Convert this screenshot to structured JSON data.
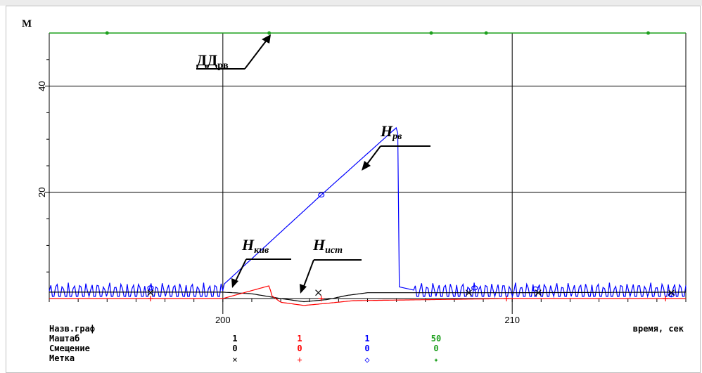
{
  "chart_data": {
    "type": "line",
    "y_axis_label": "M",
    "y_ticks": [
      20,
      40
    ],
    "x_ticks": [
      200,
      210
    ],
    "x_tick_labels": [
      "200",
      "210"
    ],
    "y_tick_labels": [
      "20",
      "40"
    ],
    "xlim": [
      194,
      216
    ],
    "ylim": [
      0,
      50
    ],
    "grid": true,
    "annotations": {
      "dd_rv": "ДД",
      "dd_rv_sub": "рв",
      "h_rv": "H",
      "h_rv_sub": "рв",
      "h_kiv": "H",
      "h_kiv_sub": "кив",
      "h_ist": "H",
      "h_ist_sub": "ист"
    },
    "series": [
      {
        "color": "#1ea01e",
        "x": [
          194,
          198,
          204,
          209,
          211,
          216
        ],
        "y": [
          50,
          50,
          50,
          50,
          50,
          50
        ]
      },
      {
        "color": "#0000ff",
        "x": [
          200,
          203.4,
          206.0,
          206.05,
          206.1,
          206.6,
          210,
          216
        ],
        "y": [
          2.5,
          19.5,
          32.2,
          31.0,
          2.2,
          1.6,
          1.6,
          1.6
        ]
      },
      {
        "color": "#000000",
        "x": [
          194,
          200,
          201,
          202,
          202.8,
          203.6,
          204.3,
          205,
          210,
          216
        ],
        "y": [
          1.2,
          1.2,
          0.9,
          0.0,
          -0.6,
          -0.2,
          0.6,
          1.1,
          1.1,
          1.2
        ]
      },
      {
        "color": "#ff0000",
        "x": [
          194,
          200,
          201.6,
          201.7,
          202,
          202.8,
          203.6,
          204.5,
          210,
          216
        ],
        "y": [
          0.0,
          0.0,
          2.4,
          0.5,
          -0.7,
          -1.3,
          -0.9,
          -0.4,
          0.0,
          0.0
        ]
      }
    ]
  },
  "legend": {
    "row1_label": "Назв.граф",
    "row1_right": "время, сек",
    "row2_label": "Маштаб",
    "row3_label": "Смещение",
    "row4_label": "Метка",
    "scale": [
      "1",
      "1",
      "1",
      "50"
    ],
    "offset": [
      "0",
      "0",
      "0",
      "0"
    ],
    "marker": [
      "×",
      "+",
      "◇",
      "✦"
    ],
    "colors": [
      "#000000",
      "#ff0000",
      "#0000ff",
      "#1ea01e"
    ]
  }
}
